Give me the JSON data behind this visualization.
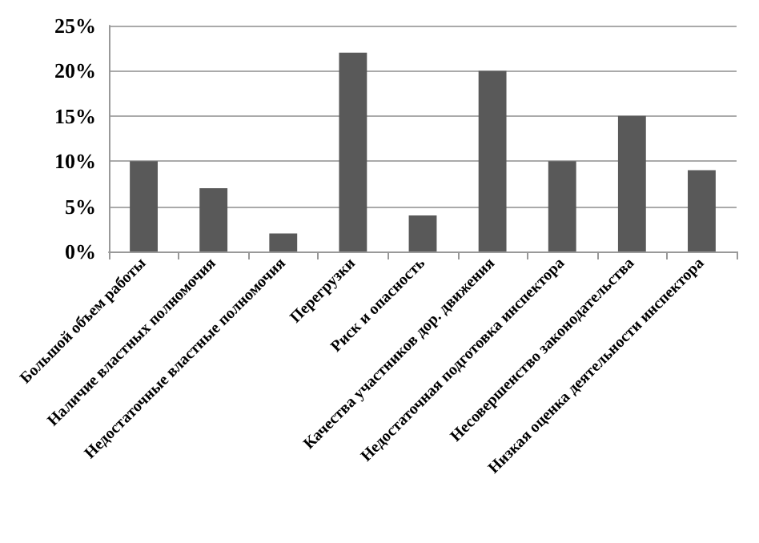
{
  "chart_data": {
    "type": "bar",
    "categories": [
      "Большой объем работы",
      "Наличие властных полномочия",
      "Недостаточные властные полномочия",
      "Перегрузки",
      "Риск и опасность",
      "Качества участников дор. движения",
      "Недостаточная подготовка инспектора",
      "Несовершенство законодательства",
      "Низкая оценка деятельности инспектора"
    ],
    "values": [
      10,
      7,
      2,
      22,
      4,
      20,
      10,
      15,
      9
    ],
    "color": "#595959",
    "ylim": [
      0,
      25
    ],
    "yticks": [
      {
        "value": 0,
        "label": "0%"
      },
      {
        "value": 5,
        "label": "5%"
      },
      {
        "value": 10,
        "label": "10%"
      },
      {
        "value": 15,
        "label": "15%"
      },
      {
        "value": 20,
        "label": "20%"
      },
      {
        "value": 25,
        "label": "25%"
      }
    ],
    "grid": "y"
  }
}
